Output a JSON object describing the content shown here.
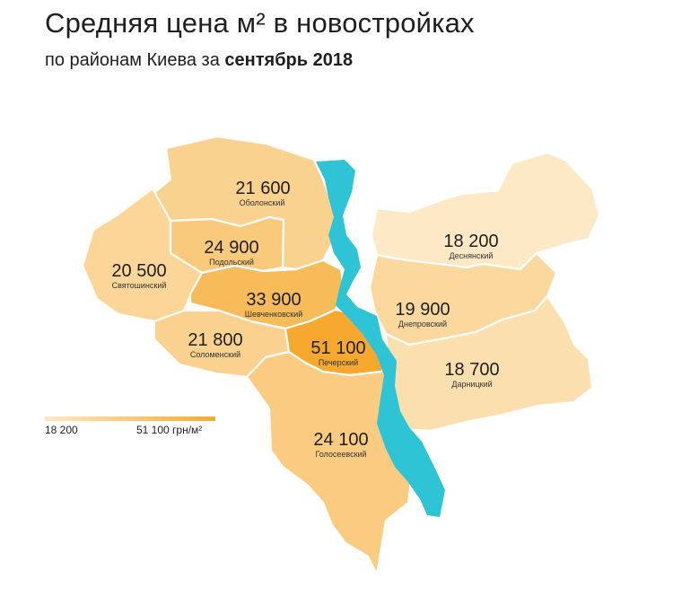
{
  "header": {
    "title": "Средняя цена м² в новостройках",
    "subtitle_prefix": "по районам Киева за",
    "subtitle_bold": "сентябрь 2018"
  },
  "legend": {
    "min_label": "18 200",
    "max_label": "51 100 грн/м²",
    "color_min": "#fde9c6",
    "color_max": "#f6a92e"
  },
  "river_color": "#2ec4d6",
  "districts": [
    {
      "key": "obolonsky",
      "price": "21 600",
      "name": "Оболонский",
      "value": 21600
    },
    {
      "key": "podolsky",
      "price": "24 900",
      "name": "Подольский",
      "value": 24900
    },
    {
      "key": "svyatoshinsky",
      "price": "20 500",
      "name": "Святошинский",
      "value": 20500
    },
    {
      "key": "shevchenkovsky",
      "price": "33 900",
      "name": "Шевченковский",
      "value": 33900
    },
    {
      "key": "solomensky",
      "price": "21 800",
      "name": "Соломенский",
      "value": 21800
    },
    {
      "key": "pechersky",
      "price": "51 100",
      "name": "Печерский",
      "value": 51100
    },
    {
      "key": "goloseevsky",
      "price": "24 100",
      "name": "Голосеевский",
      "value": 24100
    },
    {
      "key": "desnyansky",
      "price": "18 200",
      "name": "Деснянский",
      "value": 18200
    },
    {
      "key": "dneprovsky",
      "price": "19 900",
      "name": "Днепровский",
      "value": 19900
    },
    {
      "key": "darnitsky",
      "price": "18 700",
      "name": "Дарницкий",
      "value": 18700
    }
  ]
}
